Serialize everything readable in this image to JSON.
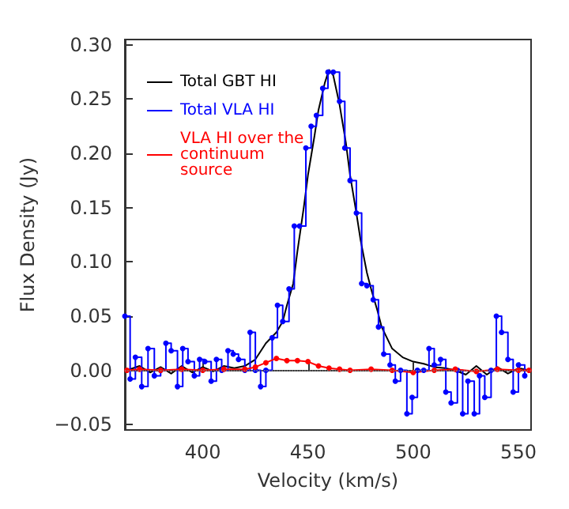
{
  "chart_data": {
    "type": "line",
    "xlabel": "Velocity (km/s)",
    "ylabel": "Flux Density (Jy)",
    "xlim": [
      363,
      556
    ],
    "xticks": [
      400,
      450,
      500,
      550
    ],
    "ylim": [
      -0.055,
      0.305
    ],
    "yticks": [
      {
        "value": -0.05,
        "label": "−0.05"
      },
      {
        "value": 0,
        "label": "0.00"
      },
      {
        "value": 0.05,
        "label": "0.05"
      },
      {
        "value": 0.1,
        "label": "0.10"
      },
      {
        "value": 0.15,
        "label": "0.15"
      },
      {
        "value": 0.2,
        "label": "0.20"
      },
      {
        "value": 0.25,
        "label": "0.25"
      },
      {
        "value": 0.3,
        "label": "0.30"
      }
    ],
    "grid": false,
    "legend": "top left",
    "ref_lines": [
      {
        "axis": "y",
        "value": 0,
        "color": "#808080",
        "line_style": "dotted"
      }
    ],
    "series": [
      {
        "name": "Total GBT HI",
        "color": "#000000",
        "marker": "none",
        "x": [
          364,
          370,
          375,
          380,
          385,
          390,
          395,
          400,
          405,
          410,
          415,
          420,
          425,
          430,
          435,
          438,
          440,
          443,
          445,
          448,
          450,
          453,
          455,
          458,
          460,
          462,
          465,
          468,
          470,
          473,
          475,
          478,
          480,
          483,
          485,
          488,
          490,
          495,
          500,
          505,
          510,
          515,
          520,
          525,
          530,
          535,
          540,
          545,
          550,
          555
        ],
        "values": [
          0.0,
          0.004,
          -0.002,
          0.003,
          -0.003,
          0.004,
          -0.002,
          0.003,
          -0.001,
          0.004,
          0.002,
          0.004,
          0.01,
          0.025,
          0.035,
          0.045,
          0.06,
          0.08,
          0.11,
          0.15,
          0.18,
          0.215,
          0.24,
          0.265,
          0.277,
          0.272,
          0.245,
          0.21,
          0.18,
          0.145,
          0.12,
          0.09,
          0.075,
          0.055,
          0.04,
          0.028,
          0.02,
          0.012,
          0.008,
          0.006,
          0.003,
          0.002,
          0.0,
          -0.004,
          0.004,
          -0.004,
          0.003,
          -0.003,
          0.002,
          0.0
        ]
      },
      {
        "name": "Total VLA HI",
        "type": "step",
        "color": "#0000ff",
        "marker": "circle",
        "x": [
          363,
          365.5,
          368,
          371,
          374,
          377,
          380,
          382.5,
          385,
          388,
          390.5,
          393,
          396,
          398.5,
          401,
          404,
          406.5,
          409,
          412,
          414.5,
          417,
          420,
          422.5,
          425,
          427.5,
          430,
          433,
          435.5,
          438,
          441,
          443.5,
          446,
          449,
          451.5,
          454,
          457,
          459.5,
          462,
          465,
          467.5,
          470,
          473,
          475.5,
          478,
          481,
          483.5,
          486,
          489,
          491.5,
          494,
          497,
          499.5,
          502,
          505,
          507.5,
          510,
          513,
          515.5,
          518,
          521,
          523.5,
          526,
          529,
          531.5,
          534,
          537,
          539.5,
          542,
          545,
          547.5,
          550,
          553
        ],
        "values": [
          0.05,
          -0.008,
          0.012,
          -0.015,
          0.02,
          -0.005,
          0.0,
          0.025,
          0.018,
          -0.015,
          0.02,
          0.008,
          -0.005,
          0.01,
          0.008,
          -0.01,
          0.01,
          0.0,
          0.018,
          0.015,
          0.01,
          0.0,
          0.035,
          0.0,
          -0.015,
          0.0,
          0.03,
          0.06,
          0.045,
          0.075,
          0.133,
          0.133,
          0.205,
          0.225,
          0.235,
          0.26,
          0.275,
          0.275,
          0.248,
          0.205,
          0.175,
          0.145,
          0.08,
          0.078,
          0.065,
          0.04,
          0.015,
          0.005,
          -0.01,
          0.0,
          -0.04,
          -0.025,
          0.0,
          0.0,
          0.02,
          0.005,
          0.01,
          -0.02,
          -0.03,
          0.0,
          -0.04,
          -0.01,
          -0.04,
          -0.005,
          -0.025,
          0.0,
          0.05,
          0.035,
          0.01,
          -0.02,
          0.005,
          -0.005
        ]
      },
      {
        "name": "VLA HI over the continuum source",
        "color": "#ff0000",
        "marker": "circle",
        "x": [
          364,
          370,
          380,
          390,
          400,
          410,
          420,
          425,
          430,
          435,
          440,
          445,
          450,
          455,
          460,
          465,
          470,
          480,
          490,
          500,
          510,
          520,
          530,
          540,
          550,
          555
        ],
        "values": [
          0.0,
          0.001,
          0.0,
          0.001,
          0.0,
          0.001,
          0.001,
          0.003,
          0.007,
          0.011,
          0.009,
          0.009,
          0.008,
          0.004,
          0.002,
          0.001,
          0.0,
          0.001,
          0.0,
          -0.002,
          0.0,
          0.001,
          -0.001,
          0.001,
          0.0,
          0.0
        ]
      }
    ]
  }
}
